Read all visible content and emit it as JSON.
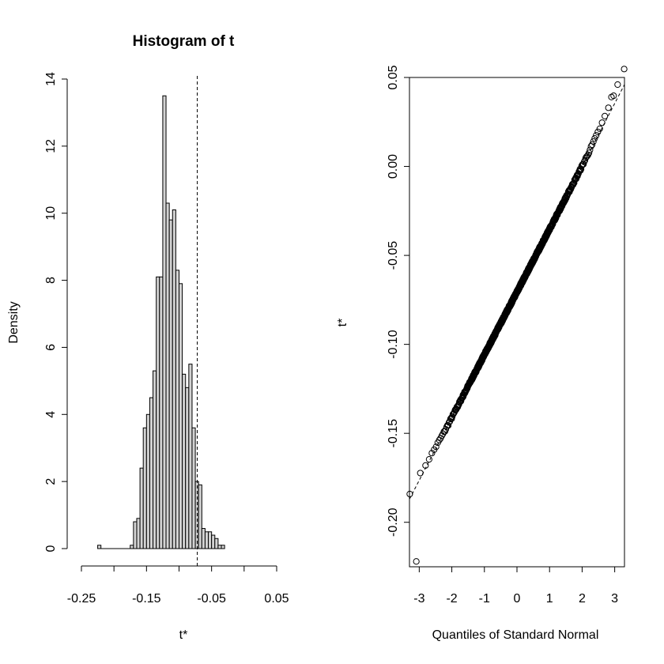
{
  "chart_data": [
    {
      "type": "bar",
      "title": "Histogram of t",
      "xlabel": "t*",
      "ylabel": "Density",
      "xlim": [
        -0.25,
        0.05
      ],
      "ylim": [
        0,
        14
      ],
      "x_ticks": [
        -0.25,
        -0.2,
        -0.15,
        -0.1,
        -0.05,
        0.0,
        0.05
      ],
      "x_tick_labels": [
        "-0.25",
        "",
        "-0.15",
        "",
        "-0.05",
        "",
        "0.05"
      ],
      "y_ticks": [
        0,
        2,
        4,
        6,
        8,
        10,
        12,
        14
      ],
      "y_tick_labels": [
        "0",
        "2",
        "4",
        "6",
        "8",
        "10",
        "12",
        "14"
      ],
      "bin_width": 0.005,
      "bin_edges_start": -0.225,
      "values": [
        0.1,
        0,
        0,
        0,
        0,
        0,
        0,
        0,
        0,
        0,
        0.1,
        0.8,
        0.9,
        2.4,
        3.6,
        4.0,
        4.5,
        5.3,
        8.1,
        8.1,
        13.5,
        10.3,
        9.8,
        10.1,
        8.3,
        7.9,
        5.2,
        4.8,
        5.5,
        3.6,
        2.0,
        1.9,
        0.6,
        0.5,
        0.5,
        0.4,
        0.3,
        0.1,
        0.1
      ],
      "values_start": -0.225,
      "reference_line": -0.072,
      "grid": false
    },
    {
      "type": "scatter",
      "title": "",
      "xlabel": "Quantiles of Standard Normal",
      "ylabel": "t*",
      "xlim": [
        -3.3,
        3.3
      ],
      "ylim": [
        -0.225,
        0.05
      ],
      "x_ticks": [
        -3,
        -2,
        -1,
        0,
        1,
        2,
        3
      ],
      "x_tick_labels": [
        "-3",
        "-2",
        "-1",
        "0",
        "1",
        "2",
        "3"
      ],
      "y_ticks": [
        -0.2,
        -0.15,
        -0.1,
        -0.05,
        0.0,
        0.05
      ],
      "y_tick_labels": [
        "-0.20",
        "-0.15",
        "-0.10",
        "-0.05",
        "0.00",
        "0.05"
      ],
      "n_points": 999,
      "mean": -0.0705,
      "sd": 0.0353,
      "extreme_points": [
        [
          -3.09,
          -0.222
        ],
        [
          3.09,
          0.046
        ],
        [
          2.9,
          0.039
        ]
      ],
      "reference_line": {
        "intercept": -0.0705,
        "slope": 0.0353
      },
      "grid": false
    }
  ]
}
